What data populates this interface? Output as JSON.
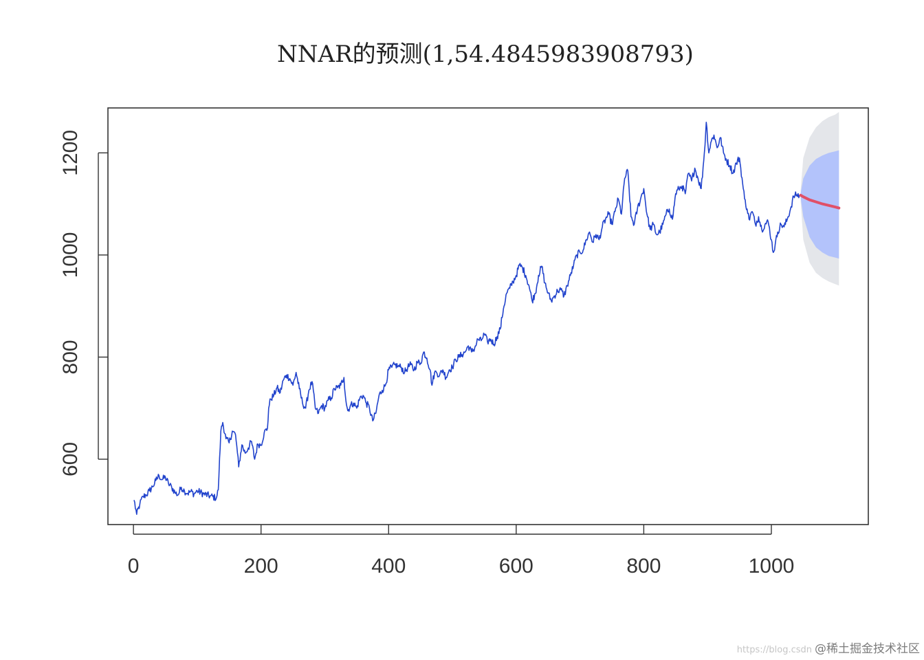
{
  "chart_data": {
    "type": "line",
    "title": "NNAR的预测(1,54.4845983908793)",
    "xlabel": "",
    "ylabel": "",
    "xlim": [
      -40,
      1152
    ],
    "ylim": [
      472,
      1288
    ],
    "x_ticks": [
      0,
      200,
      400,
      600,
      800,
      1000
    ],
    "y_ticks": [
      600,
      800,
      1000,
      1200
    ],
    "grid": false,
    "legend": "none",
    "colors": {
      "history": "#2143cc",
      "forecast": "#e05068",
      "pi80": "#b3c3fb",
      "pi95": "#e4e6ea",
      "axis": "#333333"
    },
    "history_anchors": [
      [
        1,
        520
      ],
      [
        5,
        492
      ],
      [
        10,
        512
      ],
      [
        15,
        527
      ],
      [
        20,
        530
      ],
      [
        25,
        538
      ],
      [
        30,
        546
      ],
      [
        35,
        558
      ],
      [
        40,
        568
      ],
      [
        45,
        560
      ],
      [
        50,
        565
      ],
      [
        55,
        552
      ],
      [
        60,
        545
      ],
      [
        65,
        535
      ],
      [
        70,
        530
      ],
      [
        75,
        545
      ],
      [
        80,
        538
      ],
      [
        85,
        533
      ],
      [
        90,
        537
      ],
      [
        95,
        532
      ],
      [
        100,
        538
      ],
      [
        110,
        532
      ],
      [
        120,
        528
      ],
      [
        130,
        524
      ],
      [
        133,
        540
      ],
      [
        137,
        655
      ],
      [
        140,
        672
      ],
      [
        145,
        640
      ],
      [
        150,
        632
      ],
      [
        155,
        655
      ],
      [
        160,
        648
      ],
      [
        163,
        612
      ],
      [
        165,
        585
      ],
      [
        170,
        628
      ],
      [
        175,
        612
      ],
      [
        180,
        622
      ],
      [
        185,
        635
      ],
      [
        190,
        600
      ],
      [
        195,
        630
      ],
      [
        200,
        628
      ],
      [
        205,
        652
      ],
      [
        210,
        660
      ],
      [
        212,
        700
      ],
      [
        215,
        718
      ],
      [
        220,
        725
      ],
      [
        225,
        740
      ],
      [
        230,
        730
      ],
      [
        235,
        755
      ],
      [
        240,
        765
      ],
      [
        245,
        758
      ],
      [
        250,
        745
      ],
      [
        255,
        770
      ],
      [
        260,
        738
      ],
      [
        265,
        710
      ],
      [
        270,
        700
      ],
      [
        275,
        735
      ],
      [
        280,
        752
      ],
      [
        285,
        700
      ],
      [
        290,
        690
      ],
      [
        295,
        705
      ],
      [
        300,
        700
      ],
      [
        305,
        715
      ],
      [
        310,
        720
      ],
      [
        315,
        738
      ],
      [
        320,
        740
      ],
      [
        325,
        745
      ],
      [
        330,
        760
      ],
      [
        333,
        715
      ],
      [
        336,
        695
      ],
      [
        340,
        705
      ],
      [
        345,
        710
      ],
      [
        350,
        700
      ],
      [
        355,
        720
      ],
      [
        360,
        725
      ],
      [
        365,
        710
      ],
      [
        370,
        700
      ],
      [
        375,
        675
      ],
      [
        380,
        690
      ],
      [
        385,
        725
      ],
      [
        390,
        735
      ],
      [
        395,
        745
      ],
      [
        400,
        775
      ],
      [
        405,
        780
      ],
      [
        410,
        785
      ],
      [
        415,
        782
      ],
      [
        420,
        780
      ],
      [
        425,
        770
      ],
      [
        430,
        780
      ],
      [
        435,
        785
      ],
      [
        440,
        775
      ],
      [
        445,
        790
      ],
      [
        450,
        788
      ],
      [
        455,
        810
      ],
      [
        460,
        798
      ],
      [
        465,
        775
      ],
      [
        468,
        745
      ],
      [
        472,
        770
      ],
      [
        475,
        770
      ],
      [
        480,
        765
      ],
      [
        485,
        775
      ],
      [
        490,
        760
      ],
      [
        495,
        775
      ],
      [
        500,
        780
      ],
      [
        505,
        795
      ],
      [
        510,
        800
      ],
      [
        515,
        805
      ],
      [
        520,
        810
      ],
      [
        525,
        822
      ],
      [
        530,
        810
      ],
      [
        535,
        818
      ],
      [
        540,
        835
      ],
      [
        545,
        832
      ],
      [
        550,
        845
      ],
      [
        555,
        830
      ],
      [
        560,
        835
      ],
      [
        565,
        825
      ],
      [
        570,
        840
      ],
      [
        575,
        855
      ],
      [
        580,
        895
      ],
      [
        585,
        925
      ],
      [
        590,
        935
      ],
      [
        595,
        948
      ],
      [
        600,
        960
      ],
      [
        605,
        980
      ],
      [
        610,
        975
      ],
      [
        615,
        960
      ],
      [
        620,
        940
      ],
      [
        625,
        910
      ],
      [
        630,
        925
      ],
      [
        635,
        960
      ],
      [
        640,
        978
      ],
      [
        645,
        945
      ],
      [
        650,
        925
      ],
      [
        655,
        910
      ],
      [
        660,
        920
      ],
      [
        665,
        930
      ],
      [
        670,
        932
      ],
      [
        675,
        920
      ],
      [
        680,
        940
      ],
      [
        685,
        960
      ],
      [
        690,
        980
      ],
      [
        695,
        1000
      ],
      [
        700,
        1005
      ],
      [
        705,
        1010
      ],
      [
        710,
        1030
      ],
      [
        715,
        1045
      ],
      [
        720,
        1025
      ],
      [
        725,
        1040
      ],
      [
        730,
        1030
      ],
      [
        735,
        1055
      ],
      [
        740,
        1070
      ],
      [
        745,
        1080
      ],
      [
        750,
        1060
      ],
      [
        755,
        1085
      ],
      [
        760,
        1110
      ],
      [
        765,
        1080
      ],
      [
        770,
        1150
      ],
      [
        775,
        1165
      ],
      [
        780,
        1075
      ],
      [
        785,
        1060
      ],
      [
        790,
        1090
      ],
      [
        795,
        1110
      ],
      [
        800,
        1130
      ],
      [
        805,
        1080
      ],
      [
        810,
        1050
      ],
      [
        815,
        1060
      ],
      [
        820,
        1040
      ],
      [
        825,
        1045
      ],
      [
        830,
        1060
      ],
      [
        835,
        1080
      ],
      [
        840,
        1090
      ],
      [
        845,
        1070
      ],
      [
        850,
        1120
      ],
      [
        855,
        1130
      ],
      [
        860,
        1135
      ],
      [
        865,
        1120
      ],
      [
        870,
        1160
      ],
      [
        875,
        1145
      ],
      [
        880,
        1170
      ],
      [
        885,
        1150
      ],
      [
        890,
        1130
      ],
      [
        895,
        1200
      ],
      [
        898,
        1260
      ],
      [
        902,
        1200
      ],
      [
        905,
        1220
      ],
      [
        910,
        1235
      ],
      [
        915,
        1210
      ],
      [
        920,
        1230
      ],
      [
        925,
        1200
      ],
      [
        930,
        1185
      ],
      [
        935,
        1175
      ],
      [
        940,
        1160
      ],
      [
        945,
        1180
      ],
      [
        950,
        1190
      ],
      [
        955,
        1140
      ],
      [
        958,
        1110
      ],
      [
        962,
        1090
      ],
      [
        965,
        1070
      ],
      [
        970,
        1085
      ],
      [
        975,
        1060
      ],
      [
        980,
        1075
      ],
      [
        985,
        1050
      ],
      [
        990,
        1060
      ],
      [
        995,
        1065
      ],
      [
        1000,
        1030
      ],
      [
        1003,
        1005
      ],
      [
        1006,
        1020
      ],
      [
        1010,
        1045
      ],
      [
        1015,
        1060
      ],
      [
        1020,
        1055
      ],
      [
        1025,
        1070
      ],
      [
        1030,
        1090
      ],
      [
        1035,
        1115
      ],
      [
        1040,
        1118
      ],
      [
        1045,
        1115
      ]
    ],
    "forecast": {
      "x": [
        1046,
        1050,
        1060,
        1070,
        1080,
        1090,
        1100,
        1106
      ],
      "mean": [
        1117,
        1114,
        1108,
        1104,
        1100,
        1097,
        1094,
        1092
      ],
      "lo80": [
        1112,
        1075,
        1035,
        1015,
        1005,
        998,
        995,
        993
      ],
      "hi80": [
        1121,
        1150,
        1175,
        1188,
        1195,
        1200,
        1203,
        1205
      ],
      "lo95": [
        1105,
        1030,
        985,
        965,
        955,
        948,
        943,
        940
      ],
      "hi95": [
        1128,
        1190,
        1230,
        1250,
        1262,
        1270,
        1275,
        1280
      ]
    }
  },
  "watermark": {
    "url": "https://blog.csdn",
    "text": "@稀土掘金技术社区"
  }
}
